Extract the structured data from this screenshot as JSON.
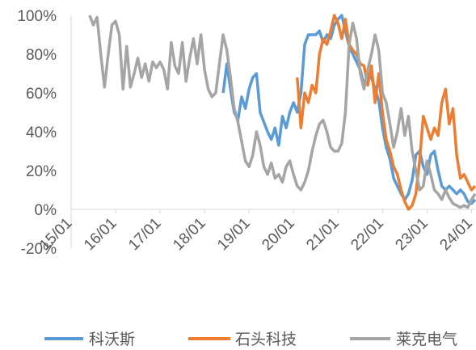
{
  "chart_data": {
    "type": "line",
    "title": "",
    "xlabel": "",
    "ylabel": "",
    "xlim": [
      "2015-01",
      "2024-02"
    ],
    "ylim": [
      -20,
      100
    ],
    "grid": false,
    "legend_position": "bottom",
    "axis_color": "#d9d9d9",
    "label_color": "#595959",
    "yticks": [
      {
        "value": -20,
        "label": "-20%"
      },
      {
        "value": 0,
        "label": "0%"
      },
      {
        "value": 20,
        "label": "20%"
      },
      {
        "value": 40,
        "label": "40%"
      },
      {
        "value": 60,
        "label": "60%"
      },
      {
        "value": 80,
        "label": "80%"
      },
      {
        "value": 100,
        "label": "100%"
      }
    ],
    "xticks": [
      {
        "value": "2015-01",
        "label": "15/01"
      },
      {
        "value": "2016-01",
        "label": "16/01"
      },
      {
        "value": "2017-01",
        "label": "17/01"
      },
      {
        "value": "2018-01",
        "label": "18/01"
      },
      {
        "value": "2019-01",
        "label": "19/01"
      },
      {
        "value": "2020-01",
        "label": "20/01"
      },
      {
        "value": "2021-01",
        "label": "21/01"
      },
      {
        "value": "2022-01",
        "label": "22/01"
      },
      {
        "value": "2023-01",
        "label": "23/01"
      },
      {
        "value": "2024-01",
        "label": "24/01"
      }
    ],
    "series": [
      {
        "name": "科沃斯",
        "color": "#5b9bd5",
        "points": [
          [
            "2018-06",
            60
          ],
          [
            "2018-07",
            75
          ],
          [
            "2018-08",
            62
          ],
          [
            "2018-09",
            50
          ],
          [
            "2018-10",
            46
          ],
          [
            "2018-11",
            58
          ],
          [
            "2018-12",
            52
          ],
          [
            "2019-01",
            62
          ],
          [
            "2019-02",
            68
          ],
          [
            "2019-03",
            70
          ],
          [
            "2019-04",
            50
          ],
          [
            "2019-05",
            45
          ],
          [
            "2019-06",
            40
          ],
          [
            "2019-07",
            36
          ],
          [
            "2019-08",
            42
          ],
          [
            "2019-09",
            33
          ],
          [
            "2019-10",
            48
          ],
          [
            "2019-11",
            42
          ],
          [
            "2019-12",
            50
          ],
          [
            "2020-01",
            55
          ],
          [
            "2020-02",
            50
          ],
          [
            "2020-03",
            60
          ],
          [
            "2020-04",
            85
          ],
          [
            "2020-05",
            90
          ],
          [
            "2020-06",
            90
          ],
          [
            "2020-07",
            90
          ],
          [
            "2020-08",
            92
          ],
          [
            "2020-09",
            86
          ],
          [
            "2020-10",
            90
          ],
          [
            "2020-11",
            88
          ],
          [
            "2020-12",
            95
          ],
          [
            "2021-01",
            98
          ],
          [
            "2021-02",
            100
          ],
          [
            "2021-03",
            92
          ],
          [
            "2021-04",
            84
          ],
          [
            "2021-05",
            80
          ],
          [
            "2021-06",
            76
          ],
          [
            "2021-07",
            72
          ],
          [
            "2021-08",
            64
          ],
          [
            "2021-09",
            70
          ],
          [
            "2021-10",
            68
          ],
          [
            "2021-11",
            62
          ],
          [
            "2021-12",
            56
          ],
          [
            "2022-01",
            42
          ],
          [
            "2022-02",
            32
          ],
          [
            "2022-03",
            26
          ],
          [
            "2022-04",
            16
          ],
          [
            "2022-05",
            12
          ],
          [
            "2022-06",
            8
          ],
          [
            "2022-07",
            5
          ],
          [
            "2022-08",
            8
          ],
          [
            "2022-09",
            15
          ],
          [
            "2022-10",
            28
          ],
          [
            "2022-11",
            30
          ],
          [
            "2022-12",
            22
          ],
          [
            "2023-01",
            18
          ],
          [
            "2023-02",
            28
          ],
          [
            "2023-03",
            30
          ],
          [
            "2023-04",
            20
          ],
          [
            "2023-05",
            12
          ],
          [
            "2023-06",
            10
          ],
          [
            "2023-07",
            12
          ],
          [
            "2023-08",
            10
          ],
          [
            "2023-09",
            8
          ],
          [
            "2023-10",
            10
          ],
          [
            "2023-11",
            8
          ],
          [
            "2023-12",
            4
          ],
          [
            "2024-01",
            3
          ],
          [
            "2024-02",
            5
          ]
        ]
      },
      {
        "name": "石头科技",
        "color": "#ed7d31",
        "points": [
          [
            "2020-02",
            68
          ],
          [
            "2020-03",
            42
          ],
          [
            "2020-04",
            60
          ],
          [
            "2020-05",
            55
          ],
          [
            "2020-06",
            64
          ],
          [
            "2020-07",
            60
          ],
          [
            "2020-08",
            80
          ],
          [
            "2020-09",
            88
          ],
          [
            "2020-10",
            85
          ],
          [
            "2020-11",
            92
          ],
          [
            "2020-12",
            100
          ],
          [
            "2021-01",
            96
          ],
          [
            "2021-02",
            88
          ],
          [
            "2021-03",
            98
          ],
          [
            "2021-04",
            85
          ],
          [
            "2021-05",
            82
          ],
          [
            "2021-06",
            80
          ],
          [
            "2021-07",
            75
          ],
          [
            "2021-08",
            74
          ],
          [
            "2021-09",
            64
          ],
          [
            "2021-10",
            74
          ],
          [
            "2021-11",
            55
          ],
          [
            "2021-12",
            70
          ],
          [
            "2022-01",
            50
          ],
          [
            "2022-02",
            36
          ],
          [
            "2022-03",
            30
          ],
          [
            "2022-04",
            22
          ],
          [
            "2022-05",
            18
          ],
          [
            "2022-06",
            10
          ],
          [
            "2022-07",
            4
          ],
          [
            "2022-08",
            0
          ],
          [
            "2022-09",
            2
          ],
          [
            "2022-10",
            8
          ],
          [
            "2022-11",
            25
          ],
          [
            "2022-12",
            48
          ],
          [
            "2023-01",
            42
          ],
          [
            "2023-02",
            36
          ],
          [
            "2023-03",
            42
          ],
          [
            "2023-04",
            38
          ],
          [
            "2023-05",
            55
          ],
          [
            "2023-06",
            62
          ],
          [
            "2023-07",
            44
          ],
          [
            "2023-08",
            52
          ],
          [
            "2023-09",
            28
          ],
          [
            "2023-10",
            16
          ],
          [
            "2023-11",
            18
          ],
          [
            "2023-12",
            14
          ],
          [
            "2024-01",
            10
          ],
          [
            "2024-02",
            12
          ]
        ]
      },
      {
        "name": "莱克电气",
        "color": "#a5a5a5",
        "points": [
          [
            "2015-06",
            100
          ],
          [
            "2015-07",
            95
          ],
          [
            "2015-08",
            99
          ],
          [
            "2015-09",
            80
          ],
          [
            "2015-10",
            63
          ],
          [
            "2015-11",
            80
          ],
          [
            "2015-12",
            95
          ],
          [
            "2016-01",
            97
          ],
          [
            "2016-02",
            90
          ],
          [
            "2016-03",
            62
          ],
          [
            "2016-04",
            84
          ],
          [
            "2016-05",
            63
          ],
          [
            "2016-06",
            70
          ],
          [
            "2016-07",
            78
          ],
          [
            "2016-08",
            68
          ],
          [
            "2016-09",
            75
          ],
          [
            "2016-10",
            66
          ],
          [
            "2016-11",
            76
          ],
          [
            "2016-12",
            73
          ],
          [
            "2017-01",
            76
          ],
          [
            "2017-02",
            72
          ],
          [
            "2017-03",
            62
          ],
          [
            "2017-04",
            86
          ],
          [
            "2017-05",
            74
          ],
          [
            "2017-06",
            70
          ],
          [
            "2017-07",
            86
          ],
          [
            "2017-08",
            66
          ],
          [
            "2017-09",
            78
          ],
          [
            "2017-10",
            88
          ],
          [
            "2017-11",
            75
          ],
          [
            "2017-12",
            90
          ],
          [
            "2018-01",
            72
          ],
          [
            "2018-02",
            62
          ],
          [
            "2018-03",
            58
          ],
          [
            "2018-04",
            60
          ],
          [
            "2018-05",
            75
          ],
          [
            "2018-06",
            90
          ],
          [
            "2018-07",
            82
          ],
          [
            "2018-08",
            68
          ],
          [
            "2018-09",
            52
          ],
          [
            "2018-10",
            45
          ],
          [
            "2018-11",
            35
          ],
          [
            "2018-12",
            25
          ],
          [
            "2019-01",
            22
          ],
          [
            "2019-02",
            28
          ],
          [
            "2019-03",
            40
          ],
          [
            "2019-04",
            33
          ],
          [
            "2019-05",
            22
          ],
          [
            "2019-06",
            18
          ],
          [
            "2019-07",
            24
          ],
          [
            "2019-08",
            16
          ],
          [
            "2019-09",
            18
          ],
          [
            "2019-10",
            14
          ],
          [
            "2019-11",
            22
          ],
          [
            "2019-12",
            25
          ],
          [
            "2020-01",
            18
          ],
          [
            "2020-02",
            12
          ],
          [
            "2020-03",
            10
          ],
          [
            "2020-04",
            14
          ],
          [
            "2020-05",
            20
          ],
          [
            "2020-06",
            30
          ],
          [
            "2020-07",
            38
          ],
          [
            "2020-08",
            44
          ],
          [
            "2020-09",
            46
          ],
          [
            "2020-10",
            40
          ],
          [
            "2020-11",
            32
          ],
          [
            "2020-12",
            30
          ],
          [
            "2021-01",
            30
          ],
          [
            "2021-02",
            34
          ],
          [
            "2021-03",
            50
          ],
          [
            "2021-04",
            85
          ],
          [
            "2021-05",
            96
          ],
          [
            "2021-06",
            88
          ],
          [
            "2021-07",
            70
          ],
          [
            "2021-08",
            62
          ],
          [
            "2021-09",
            72
          ],
          [
            "2021-10",
            80
          ],
          [
            "2021-11",
            90
          ],
          [
            "2021-12",
            82
          ],
          [
            "2022-01",
            60
          ],
          [
            "2022-02",
            55
          ],
          [
            "2022-03",
            44
          ],
          [
            "2022-04",
            32
          ],
          [
            "2022-05",
            40
          ],
          [
            "2022-06",
            52
          ],
          [
            "2022-07",
            38
          ],
          [
            "2022-08",
            48
          ],
          [
            "2022-09",
            30
          ],
          [
            "2022-10",
            20
          ],
          [
            "2022-11",
            10
          ],
          [
            "2022-12",
            12
          ],
          [
            "2023-01",
            25
          ],
          [
            "2023-02",
            18
          ],
          [
            "2023-03",
            10
          ],
          [
            "2023-04",
            8
          ],
          [
            "2023-05",
            5
          ],
          [
            "2023-06",
            10
          ],
          [
            "2023-07",
            6
          ],
          [
            "2023-08",
            3
          ],
          [
            "2023-09",
            2
          ],
          [
            "2023-10",
            1
          ],
          [
            "2023-11",
            2
          ],
          [
            "2023-12",
            1
          ],
          [
            "2024-01",
            5
          ],
          [
            "2024-02",
            8
          ]
        ]
      }
    ]
  }
}
